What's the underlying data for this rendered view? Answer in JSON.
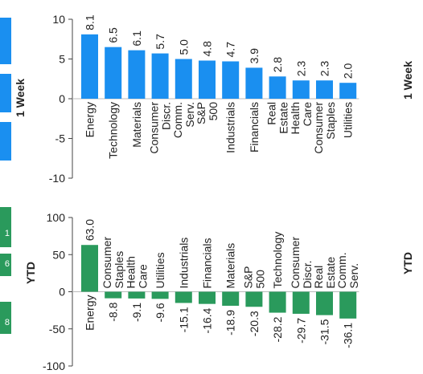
{
  "colors": {
    "week_bar": "#1a8ff0",
    "ytd_bar": "#2a9a5c",
    "axis": "#444444"
  },
  "left_edge": {
    "ytd_fragments": [
      "1",
      "6",
      "8"
    ]
  },
  "chart_data": [
    {
      "type": "bar",
      "ylabel": "1 Week",
      "side_label": "1 Week",
      "ylim": [
        -10,
        10
      ],
      "yticks": [
        "10",
        "5",
        "0",
        "-5",
        "-10"
      ],
      "categories": [
        "Energy",
        "Technology",
        "Materials",
        "Consumer Discr.",
        "Comm. Serv.",
        "S&P 500",
        "Industrials",
        "Financials",
        "Real Estate",
        "Health Care",
        "Consumer Staples",
        "Utilities"
      ],
      "values": [
        8.1,
        6.5,
        6.1,
        5.7,
        5.0,
        4.8,
        4.7,
        3.9,
        2.8,
        2.3,
        2.3,
        2.0
      ],
      "value_labels": [
        "8.1",
        "6.5",
        "6.1",
        "5.7",
        "5.0",
        "4.8",
        "4.7",
        "3.9",
        "2.8",
        "2.3",
        "2.3",
        "2.0"
      ]
    },
    {
      "type": "bar",
      "ylabel": "YTD",
      "side_label": "YTD",
      "ylim": [
        -100,
        100
      ],
      "yticks": [
        "100",
        "50",
        "0",
        "-50",
        "-100"
      ],
      "categories": [
        "Energy",
        "Consumer Staples",
        "Health Care",
        "Utilities",
        "Industrials",
        "Financials",
        "Materials",
        "S&P 500",
        "Technology",
        "Consumer Discr.",
        "Real Estate",
        "Comm. Serv."
      ],
      "values": [
        63.0,
        -8.8,
        -9.1,
        -9.6,
        -15.1,
        -16.4,
        -18.9,
        -20.3,
        -28.2,
        -29.7,
        -31.5,
        -36.1
      ],
      "value_labels": [
        "63.0",
        "-8.8",
        "-9.1",
        "-9.6",
        "-15.1",
        "-16.4",
        "-18.9",
        "-20.3",
        "-28.2",
        "-29.7",
        "-31.5",
        "-36.1"
      ]
    }
  ]
}
